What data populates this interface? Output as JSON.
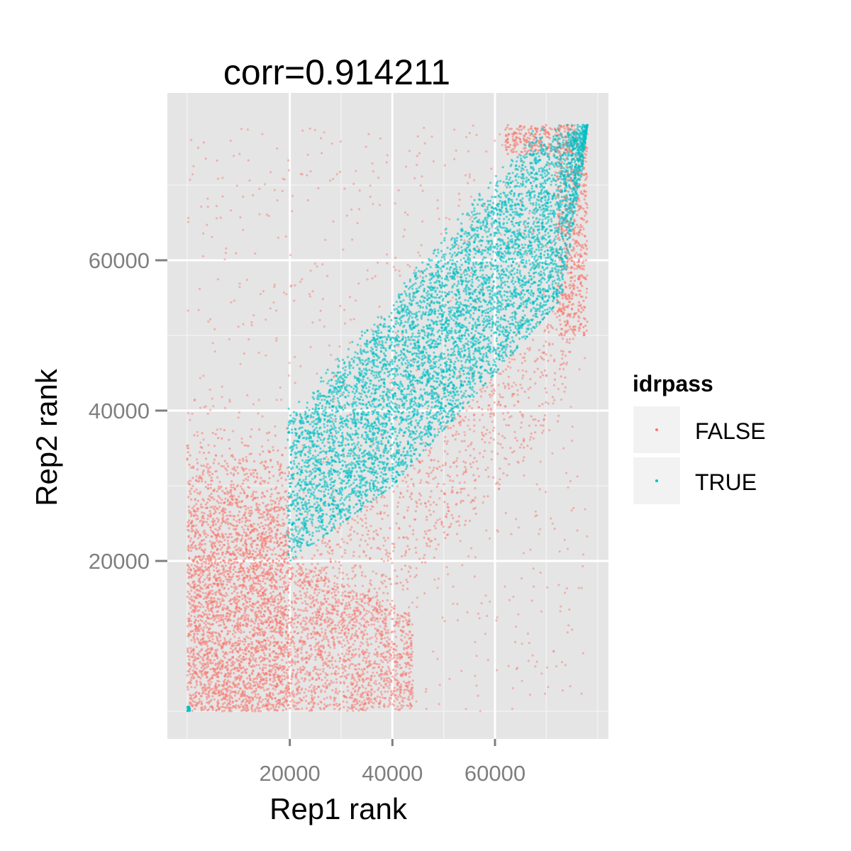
{
  "chart_data": {
    "type": "scatter",
    "title": "corr=0.914211",
    "xlabel": "Rep1 rank",
    "ylabel": "Rep2 rank",
    "xlim": [
      -4000,
      82000
    ],
    "ylim": [
      -4000,
      82000
    ],
    "x_ticks": [
      20000,
      40000,
      60000
    ],
    "y_ticks": [
      20000,
      40000,
      60000
    ],
    "x_minor_ticks": [
      0,
      30000,
      50000,
      70000,
      80000
    ],
    "y_minor_ticks": [
      0,
      30000,
      50000,
      70000
    ],
    "grid": true,
    "panel_background": "#e5e5e5",
    "legend": {
      "title": "idrpass",
      "position": "right",
      "entries": [
        {
          "label": "FALSE",
          "color": "#f8766d"
        },
        {
          "label": "TRUE",
          "color": "#00bfc4"
        }
      ]
    },
    "series": [
      {
        "name": "FALSE",
        "color": "#f8766d",
        "regions": [
          {
            "desc": "dense low-rank block",
            "x": [
              0,
              20000
            ],
            "y": [
              0,
              38000
            ],
            "density": "very high"
          },
          {
            "desc": "low Rep2 band",
            "x": [
              20000,
              42000
            ],
            "y": [
              0,
              20000
            ],
            "density": "high"
          },
          {
            "desc": "scattered sparse",
            "x": [
              0,
              78000
            ],
            "y": [
              0,
              78000
            ],
            "density": "low"
          },
          {
            "desc": "upper-right tail",
            "x": [
              72000,
              78000
            ],
            "y": [
              50000,
              76000
            ],
            "density": "high"
          },
          {
            "desc": "top edge",
            "x": [
              62000,
              76000
            ],
            "y": [
              74000,
              78000
            ],
            "density": "medium"
          }
        ]
      },
      {
        "name": "TRUE",
        "color": "#00bfc4",
        "regions": [
          {
            "desc": "diagonal band",
            "x": [
              19000,
              78000
            ],
            "y": [
              18000,
              78000
            ],
            "density": "very high",
            "lower_edge": [
              [
                19000,
                18000
              ],
              [
                20000,
                20000
              ],
              [
                40000,
                30000
              ],
              [
                60000,
                45000
              ],
              [
                73000,
                55000
              ],
              [
                77000,
                72000
              ],
              [
                78000,
                78000
              ]
            ],
            "upper_edge": [
              [
                22000,
                40000
              ],
              [
                35000,
                50000
              ],
              [
                50000,
                62000
              ],
              [
                60000,
                70000
              ],
              [
                68000,
                76000
              ],
              [
                78000,
                78000
              ]
            ]
          }
        ]
      }
    ]
  }
}
